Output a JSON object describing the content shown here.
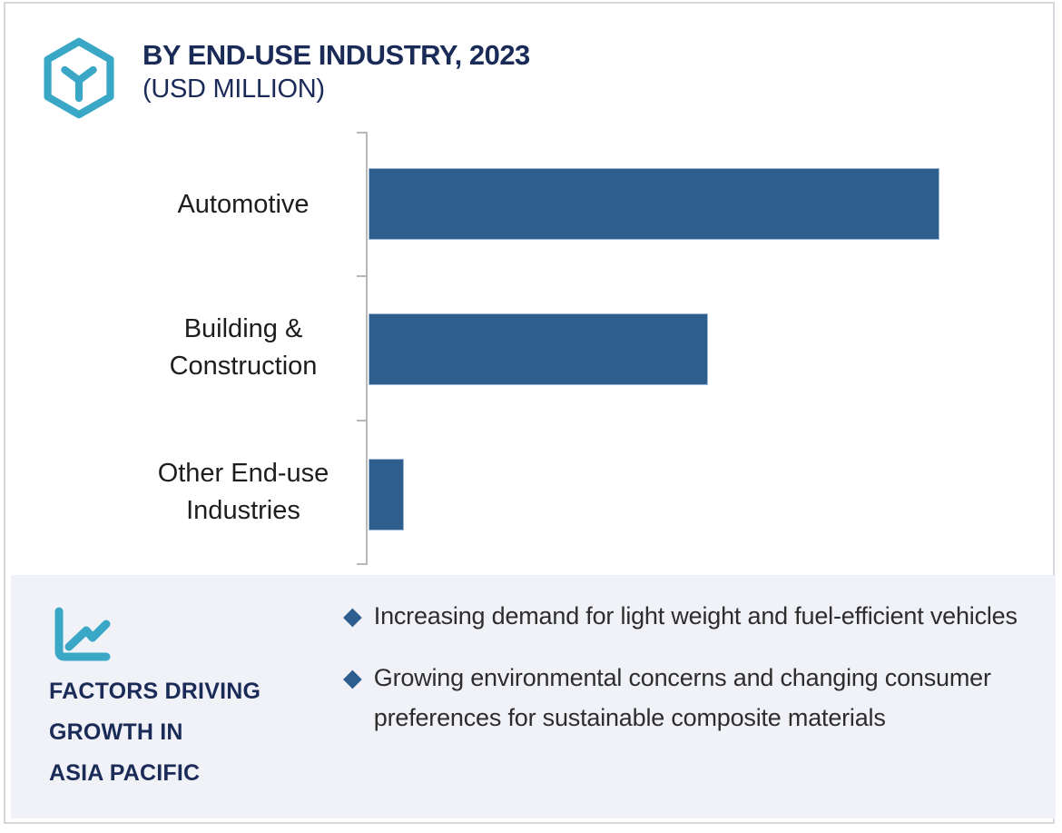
{
  "header": {
    "title": "BY END-USE INDUSTRY, 2023",
    "subtitle": "(USD MILLION)",
    "logo_icon": "hexagon-y-brand-icon"
  },
  "chart_data": {
    "type": "bar",
    "orientation": "horizontal",
    "title": "BY END-USE INDUSTRY, 2023",
    "subtitle_units": "(USD MILLION)",
    "categories": [
      "Automotive",
      "Building & Construction",
      "Other End-use Industries"
    ],
    "values_relative": [
      100,
      59.5,
      6.2
    ],
    "values_note": "no numeric axis or data labels shown; values estimated from bar lengths with Automotive = 100",
    "xlim_relative": [
      0,
      118.7
    ],
    "value_axis_labels_shown": false,
    "grid": false,
    "legend": false,
    "bar_color": "#2d5e8e",
    "axis_color": "#b8b8b8"
  },
  "factors_panel": {
    "icon": "line-chart-icon",
    "heading": "FACTORS DRIVING\nGROWTH IN\nASIA PACIFIC",
    "bullet_icon": "diamond",
    "bullet_glyph": "◆",
    "bullets": [
      "Increasing demand for light weight and fuel-efficient vehicles",
      "Growing environmental concerns and changing consumer preferences for sustainable composite materials"
    ],
    "background_color": "#f0f2f7"
  },
  "colors": {
    "brand_teal": "#3aa7c6",
    "navy_text": "#1b2b58",
    "bar_blue": "#2d5e8e",
    "panel_background": "#f0f2f7"
  }
}
